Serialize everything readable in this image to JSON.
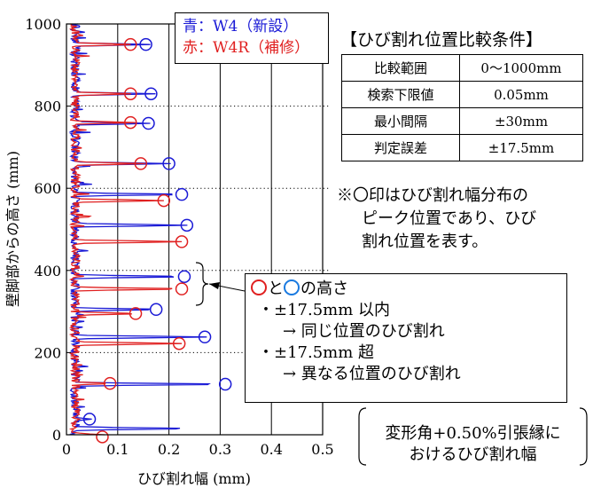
{
  "chart_data": {
    "type": "line",
    "xlabel": "ひび割れ幅 (mm)",
    "ylabel": "壁脚部からの高さ (mm)",
    "xlim": [
      0,
      0.5
    ],
    "ylim": [
      0,
      1000
    ],
    "xticks": [
      "0",
      "0.1",
      "0.2",
      "0.3",
      "0.4",
      "0.5"
    ],
    "yticks": [
      "0",
      "200",
      "400",
      "600",
      "800",
      "1000"
    ],
    "grid": "vertical solid at 0.1 steps; horizontal dotted at 200 steps",
    "legend": {
      "placement": "top-center",
      "blue": "青：W4（新設）",
      "red": "赤：W4R（補修）"
    },
    "series": [
      {
        "name": "W4（新設）",
        "color": "#1a1ad6",
        "peaks": [
          {
            "y": 950,
            "x": 0.155
          },
          {
            "y": 830,
            "x": 0.165
          },
          {
            "y": 758,
            "x": 0.16
          },
          {
            "y": 660,
            "x": 0.2
          },
          {
            "y": 585,
            "x": 0.225
          },
          {
            "y": 510,
            "x": 0.235
          },
          {
            "y": 385,
            "x": 0.23
          },
          {
            "y": 305,
            "x": 0.175
          },
          {
            "y": 238,
            "x": 0.27
          },
          {
            "y": 123,
            "x": 0.31
          },
          {
            "y": 38,
            "x": 0.045
          },
          {
            "y": 15,
            "x": 0.24
          }
        ],
        "circles": [
          {
            "y": 950,
            "x": 0.155
          },
          {
            "y": 830,
            "x": 0.165
          },
          {
            "y": 758,
            "x": 0.16
          },
          {
            "y": 660,
            "x": 0.2
          },
          {
            "y": 585,
            "x": 0.225
          },
          {
            "y": 510,
            "x": 0.235
          },
          {
            "y": 385,
            "x": 0.23
          },
          {
            "y": 305,
            "x": 0.175
          },
          {
            "y": 238,
            "x": 0.27
          },
          {
            "y": 123,
            "x": 0.31
          },
          {
            "y": 38,
            "x": 0.045
          }
        ]
      },
      {
        "name": "W4R（補修）",
        "color": "#e02020",
        "peaks": [
          {
            "y": 950,
            "x": 0.125
          },
          {
            "y": 830,
            "x": 0.125
          },
          {
            "y": 760,
            "x": 0.125
          },
          {
            "y": 660,
            "x": 0.145
          },
          {
            "y": 570,
            "x": 0.19
          },
          {
            "y": 470,
            "x": 0.225
          },
          {
            "y": 355,
            "x": 0.225
          },
          {
            "y": 295,
            "x": 0.135
          },
          {
            "y": 222,
            "x": 0.22
          },
          {
            "y": 125,
            "x": 0.085
          },
          {
            "y": 0,
            "x": 0.07
          }
        ],
        "circles": [
          {
            "y": 950,
            "x": 0.125
          },
          {
            "y": 830,
            "x": 0.125
          },
          {
            "y": 760,
            "x": 0.125
          },
          {
            "y": 660,
            "x": 0.145
          },
          {
            "y": 570,
            "x": 0.19
          },
          {
            "y": 470,
            "x": 0.225
          },
          {
            "y": 355,
            "x": 0.225
          },
          {
            "y": 295,
            "x": 0.135
          },
          {
            "y": 222,
            "x": 0.22
          },
          {
            "y": 125,
            "x": 0.085
          },
          {
            "y": -5,
            "x": 0.07
          }
        ]
      }
    ]
  },
  "conditions": {
    "title": "【ひび割れ位置比較条件】",
    "rows": [
      {
        "label": "比較範囲",
        "value": "0～1000mm"
      },
      {
        "label": "検索下限値",
        "value": "0.05mm"
      },
      {
        "label": "最小間隔",
        "value": "±30mm"
      },
      {
        "label": "判定誤差",
        "value": "±17.5mm"
      }
    ]
  },
  "note": {
    "line1": "※〇印はひび割れ幅分布の",
    "line2": "ピーク位置であり、ひび",
    "line3": "割れ位置を表す。"
  },
  "callout": {
    "and_text": "と",
    "height_text": "の高さ",
    "item1": "・±17.5mm 以内",
    "item1_result": "→  同じ位置のひび割れ",
    "item2": "・±17.5mm 超",
    "item2_result": "→  異なる位置のひび割れ"
  },
  "bottom_note": {
    "line1": "変形角+0.50%引張縁に",
    "line2": "おけるひび割れ幅"
  }
}
